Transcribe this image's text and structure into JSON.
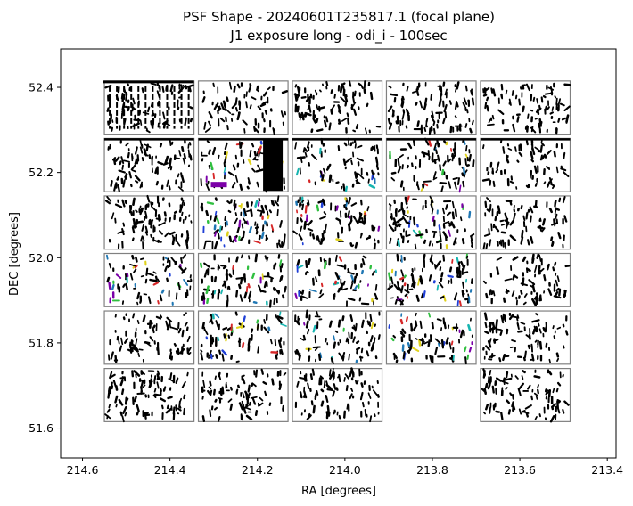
{
  "chart_data": {
    "type": "scatter",
    "title": "PSF Shape - 20240601T235817.1 (focal plane)",
    "subtitle": "J1 exposure long - odi_i - 100sec",
    "xlabel": "RA [degrees]",
    "ylabel": "DEC [degrees]",
    "xlim": [
      214.65,
      213.38
    ],
    "ylim": [
      51.53,
      52.49
    ],
    "x_inverted": true,
    "xticks": [
      "214.6",
      "214.4",
      "214.2",
      "214.0",
      "213.8",
      "213.6",
      "213.4"
    ],
    "xtick_values": [
      214.6,
      214.4,
      214.2,
      214.0,
      213.8,
      213.6,
      213.4
    ],
    "yticks": [
      "51.6",
      "51.8",
      "52.0",
      "52.2",
      "52.4"
    ],
    "ytick_values": [
      51.6,
      51.8,
      52.0,
      52.2,
      52.4
    ],
    "grid": false,
    "legend": "none",
    "ota_columns_ra": [
      [
        214.55,
        214.345
      ],
      [
        214.335,
        214.13
      ],
      [
        214.12,
        213.915
      ],
      [
        213.905,
        213.7
      ],
      [
        213.69,
        213.485
      ]
    ],
    "ota_rows_dec": [
      [
        52.415,
        52.29
      ],
      [
        52.28,
        52.155
      ],
      [
        52.145,
        52.02
      ],
      [
        52.01,
        51.885
      ],
      [
        51.875,
        51.75
      ],
      [
        51.74,
        51.615
      ]
    ],
    "missing_otas": [
      [
        5,
        3
      ]
    ],
    "outline_color": "#808080",
    "marker_color": "#000000",
    "accent_colors": [
      "#7b00a8",
      "#1f3fd6",
      "#17b5b0",
      "#2fbf3f",
      "#e0d21b",
      "#d62728",
      "#1f77b4"
    ]
  }
}
